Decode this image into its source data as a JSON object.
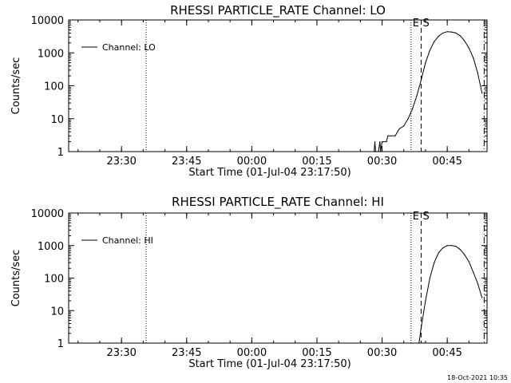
{
  "footer_timestamp": "18-Oct-2021 10:35",
  "chart_data": [
    {
      "type": "line",
      "title": "RHESSI PARTICLE_RATE Channel: LO",
      "xlabel": "Start Time (01-Jul-04 23:17:50)",
      "ylabel": "Counts/sec",
      "yscale": "log",
      "ylim": [
        1,
        10000
      ],
      "xlim": [
        "23:17:50",
        "00:54:10"
      ],
      "x_ticks": [
        "23:30",
        "23:45",
        "00:00",
        "00:15",
        "00:30",
        "00:45"
      ],
      "y_ticks": [
        "1",
        "10",
        "100",
        "1000",
        "10000"
      ],
      "legend": "top-left",
      "series": [
        {
          "name": "Channel: LO",
          "x": [
            "00:28:10",
            "00:28:20",
            "00:28:30",
            "00:28:40",
            "00:28:50",
            "00:29:10",
            "00:29:30",
            "00:29:40",
            "00:30:00",
            "00:31:00",
            "00:31:20",
            "00:32:00",
            "00:33:00",
            "00:34:00",
            "00:35:00",
            "00:36:00",
            "00:37:00",
            "00:38:00",
            "00:39:00",
            "00:40:00",
            "00:41:00",
            "00:42:00",
            "00:43:00",
            "00:44:00",
            "00:45:00",
            "00:46:00",
            "00:47:00",
            "00:48:00",
            "00:49:00",
            "00:50:00",
            "00:51:00",
            "00:52:00",
            "00:53:00"
          ],
          "values": [
            1,
            2,
            1,
            1,
            1,
            1,
            2,
            1,
            2,
            2,
            3,
            3,
            3,
            5,
            6,
            10,
            20,
            50,
            150,
            500,
            1200,
            2200,
            3200,
            4000,
            4400,
            4300,
            4000,
            3300,
            2300,
            1400,
            700,
            250,
            60
          ]
        }
      ],
      "markers": [
        {
          "label": "E",
          "time": "00:36:40",
          "style": "dotted"
        },
        {
          "label": "S",
          "time": "00:39:00",
          "style": "dashed"
        },
        {
          "label": "",
          "time": "00:53:30",
          "style": "dash-dot"
        }
      ],
      "extra_markers": [
        {
          "label": "",
          "time": "23:35:40",
          "style": "dotted"
        }
      ]
    },
    {
      "type": "line",
      "title": "RHESSI PARTICLE_RATE Channel: HI",
      "xlabel": "Start Time (01-Jul-04 23:17:50)",
      "ylabel": "Counts/sec",
      "yscale": "log",
      "ylim": [
        1,
        10000
      ],
      "xlim": [
        "23:17:50",
        "00:54:10"
      ],
      "x_ticks": [
        "23:30",
        "23:45",
        "00:00",
        "00:15",
        "00:30",
        "00:45"
      ],
      "y_ticks": [
        "1",
        "10",
        "100",
        "1000",
        "10000"
      ],
      "legend": "top-left",
      "series": [
        {
          "name": "Channel: HI",
          "x": [
            "00:38:30",
            "00:39:00",
            "00:40:00",
            "00:41:00",
            "00:42:00",
            "00:43:00",
            "00:44:00",
            "00:45:00",
            "00:46:00",
            "00:47:00",
            "00:48:00",
            "00:49:00",
            "00:50:00",
            "00:51:00",
            "00:52:00",
            "00:53:00"
          ],
          "values": [
            1,
            3,
            20,
            100,
            300,
            600,
            850,
            1000,
            1000,
            950,
            750,
            520,
            320,
            150,
            70,
            25
          ]
        }
      ],
      "markers": [
        {
          "label": "E",
          "time": "00:36:40",
          "style": "dotted"
        },
        {
          "label": "S",
          "time": "00:39:00",
          "style": "dashed"
        },
        {
          "label": "",
          "time": "00:53:30",
          "style": "dash-dot"
        }
      ],
      "extra_markers": [
        {
          "label": "",
          "time": "23:35:40",
          "style": "dotted"
        }
      ]
    }
  ]
}
